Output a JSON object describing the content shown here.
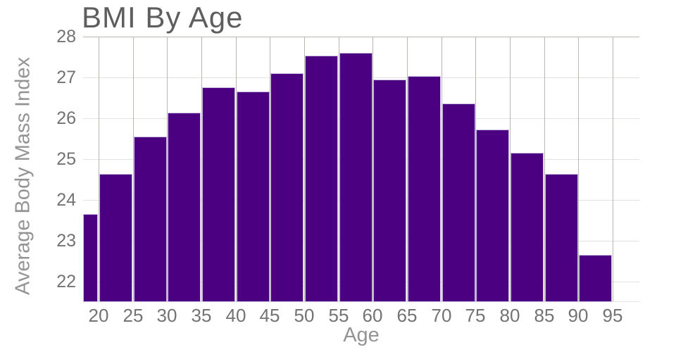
{
  "chart_data": {
    "type": "bar",
    "title": "BMI By Age",
    "xlabel": "Age",
    "ylabel": "Average Body Mass Index",
    "bin_edges": [
      15,
      20,
      25,
      30,
      35,
      40,
      45,
      50,
      55,
      60,
      65,
      70,
      75,
      80,
      85,
      90,
      95
    ],
    "values": [
      23.65,
      24.63,
      25.55,
      26.14,
      26.76,
      26.66,
      27.11,
      27.53,
      27.6,
      26.95,
      27.03,
      26.36,
      25.73,
      25.16,
      24.64,
      22.66
    ],
    "bin_labels": [
      "15-20 (clipped at axis)",
      "20-25",
      "25-30",
      "30-35",
      "35-40",
      "40-45",
      "45-50",
      "50-55",
      "55-60",
      "60-65",
      "65-70",
      "70-75",
      "75-80",
      "80-85",
      "85-90",
      "90-95"
    ],
    "xticks": [
      20,
      25,
      30,
      35,
      40,
      45,
      50,
      55,
      60,
      65,
      70,
      75,
      80,
      85,
      90,
      95
    ],
    "yticks": [
      22,
      23,
      24,
      25,
      26,
      27,
      28
    ],
    "xlim": [
      17.74,
      98.9
    ],
    "ylim": [
      21.5,
      28
    ],
    "grid": true,
    "legend": false,
    "colors": {
      "bar_fill": "#4B0082",
      "bar_edge": "#CBBCE2",
      "grid_vertical": "#B8B8B1",
      "grid_horizontal": "#E3E3E3",
      "plot_top_border": "#B8B8B1",
      "plot_bottom_border": "#E7E1F0",
      "title_text": "#5E5E5E",
      "tick_text": "#737373",
      "axis_title_text": "#949494"
    }
  }
}
